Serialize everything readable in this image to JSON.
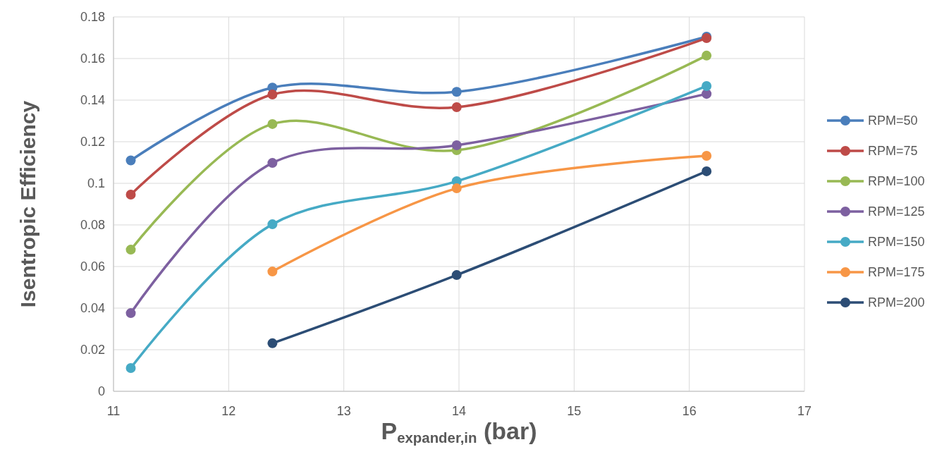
{
  "chart_data": {
    "type": "line",
    "xlabel": "P$_{expander,in}$ (bar)",
    "ylabel": "Isentropic Efficiency",
    "x": [
      11.15,
      12.38,
      13.98,
      16.15
    ],
    "xlim": [
      11,
      17
    ],
    "xticks": [
      11,
      12,
      13,
      14,
      15,
      16,
      17
    ],
    "ylim": [
      0,
      0.18
    ],
    "yticks": [
      0,
      0.02,
      0.04,
      0.06,
      0.08,
      0.1,
      0.12,
      0.14,
      0.16,
      0.18
    ],
    "grid": true,
    "legend": "right",
    "marker": "circle",
    "line_style": "solid",
    "series": [
      {
        "name": "RPM=50",
        "color": "#4a7ebb",
        "values": [
          0.111,
          0.146,
          0.144,
          0.1705
        ]
      },
      {
        "name": "RPM=75",
        "color": "#be4b48",
        "values": [
          0.0946,
          0.1427,
          0.1366,
          0.1698
        ]
      },
      {
        "name": "RPM=100",
        "color": "#98b954",
        "values": [
          0.0681,
          0.1285,
          0.1159,
          0.1614
        ]
      },
      {
        "name": "RPM=125",
        "color": "#7d60a0",
        "values": [
          0.0376,
          0.1098,
          0.1183,
          0.143
        ]
      },
      {
        "name": "RPM=150",
        "color": "#46aac5",
        "values": [
          0.0112,
          0.0803,
          0.101,
          0.1468
        ]
      },
      {
        "name": "RPM=175",
        "color": "#f79646",
        "values": [
          null,
          0.0576,
          0.0976,
          0.1132
        ]
      },
      {
        "name": "RPM=200",
        "color": "#2c4d75",
        "values": [
          null,
          0.0231,
          0.0559,
          0.1058
        ]
      }
    ]
  }
}
